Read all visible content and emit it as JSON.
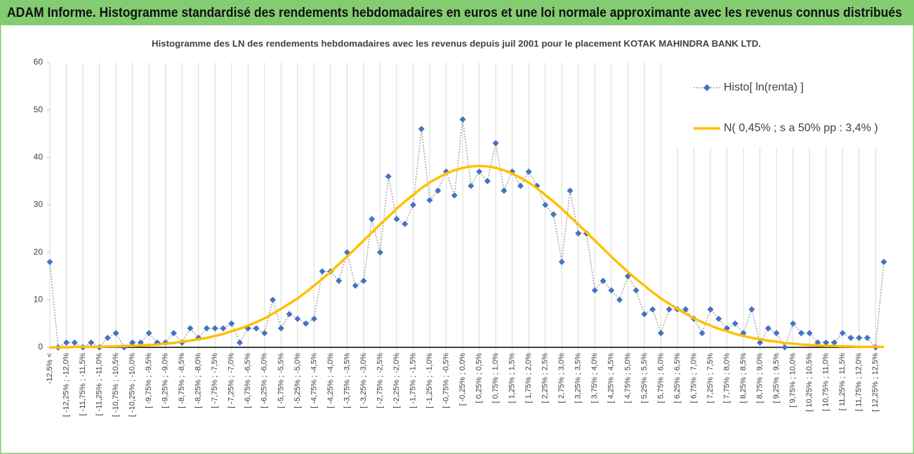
{
  "header": {
    "title": "ADAM Informe. Histogramme standardisé des rendements hebdomadaires en euros et une loi normale approximante avec les revenus connus distribués"
  },
  "chart_data": {
    "type": "line",
    "title": "Histogramme des LN des rendements hebdomadaires avec les revenus depuis juil 2001 pour le placement KOTAK MAHINDRA BANK LTD.",
    "categories": [
      "-12,5% <",
      null,
      "[ -12,25% ; -12,0%",
      null,
      "[ -11,75% ; -11,5%",
      null,
      "[ -11,25% ; -11,0%",
      null,
      "[ -10,75% ; -10,5%",
      null,
      "[ -10,25% ; -10,0%",
      null,
      "[ -9,75% ; -9,5%",
      null,
      "[ -9,25% ; -9,0%",
      null,
      "[ -8,75% ; -8,5%",
      null,
      "[ -8,25% ; -8,0%",
      null,
      "[ -7,75% ; -7,5%",
      null,
      "[ -7,25% ; -7,0%",
      null,
      "[ -6,75% ; -6,5%",
      null,
      "[ -6,25% ; -6,0%",
      null,
      "[ -5,75% ; -5,5%",
      null,
      "[ -5,25% ; -5,0%",
      null,
      "[ -4,75% ; -4,5%",
      null,
      "[ -4,25% ; -4,0%",
      null,
      "[ -3,75% ; -3,5%",
      null,
      "[ -3,25% ; -3,0%",
      null,
      "[ -2,75% ; -2,5%",
      null,
      "[ -2,25% ; -2,0%",
      null,
      "[ -1,75% ; -1,5%",
      null,
      "[ -1,25% ; -1,0%",
      null,
      "[ -0,75% ; -0,5%",
      null,
      "[ -0,25% ; 0,0%",
      null,
      "[ 0,25% ; 0,5%",
      null,
      "[ 0,75% ; 1,0%",
      null,
      "[ 1,25% ; 1,5%",
      null,
      "[ 1,75% ; 2,0%",
      null,
      "[ 2,25% ; 2,5%",
      null,
      "[ 2,75% ; 3,0%",
      null,
      "[ 3,25% ; 3,5%",
      null,
      "[ 3,75% ; 4,0%",
      null,
      "[ 4,25% ; 4,5%",
      null,
      "[ 4,75% ; 5,0%",
      null,
      "[ 5,25% ; 5,5%",
      null,
      "[ 5,75% ; 6,0%",
      null,
      "[ 6,25% ; 6,5%",
      null,
      "[ 6,75% ; 7,0%",
      null,
      "[ 7,25% ; 7,5%",
      null,
      "[ 7,75% ; 8,0%",
      null,
      "[ 8,25% ; 8,5%",
      null,
      "[ 8,75% ; 9,0%",
      null,
      "[ 9,25% ; 9,5%",
      null,
      "[ 9,75% ; 10,0%",
      null,
      "[ 10,25% ; 10,5%",
      null,
      "[ 10,75% ; 11,0%",
      null,
      "[ 11,25% ; 11,5%",
      null,
      "[ 11,75% ; 12,0%",
      null,
      "[ 12,25% ; 12,5%",
      null
    ],
    "series": [
      {
        "name": "Histo[ ln(renta) ]",
        "color": "#4472c4",
        "line_color": "#a6a6a6",
        "dash": "dot",
        "marker": "diamond",
        "values": [
          18,
          0,
          1,
          1,
          0,
          1,
          0,
          2,
          3,
          0,
          1,
          1,
          3,
          1,
          1,
          3,
          1,
          4,
          2,
          4,
          4,
          4,
          5,
          1,
          4,
          4,
          3,
          10,
          4,
          7,
          6,
          5,
          6,
          16,
          16,
          14,
          20,
          13,
          14,
          27,
          20,
          36,
          27,
          26,
          30,
          46,
          31,
          33,
          37,
          32,
          48,
          34,
          37,
          35,
          43,
          33,
          37,
          34,
          37,
          34,
          30,
          28,
          18,
          33,
          24,
          24,
          12,
          14,
          12,
          10,
          15,
          12,
          7,
          8,
          3,
          8,
          8,
          8,
          6,
          3,
          8,
          6,
          4,
          5,
          3,
          8,
          1,
          4,
          3,
          0,
          5,
          3,
          3,
          1,
          1,
          1,
          3,
          2,
          2,
          2,
          0,
          18
        ]
      },
      {
        "name": "N( 0,45% ; s a 50% pp : 3,4% )",
        "color": "#ffc000",
        "dash": "solid",
        "marker": "none",
        "values": [
          0.0,
          0.0,
          0.0,
          0.1,
          0.1,
          0.1,
          0.1,
          0.2,
          0.2,
          0.3,
          0.3,
          0.4,
          0.5,
          0.6,
          0.8,
          0.9,
          1.2,
          1.4,
          1.7,
          2.0,
          2.4,
          2.8,
          3.4,
          3.9,
          4.6,
          5.3,
          6.1,
          7.1,
          8.1,
          9.2,
          10.3,
          11.6,
          13.0,
          14.4,
          15.9,
          17.5,
          19.1,
          20.8,
          22.5,
          24.2,
          25.9,
          27.5,
          29.2,
          30.7,
          32.1,
          33.5,
          34.7,
          35.7,
          36.6,
          37.3,
          37.8,
          38.1,
          38.2,
          38.1,
          37.8,
          37.3,
          36.6,
          35.7,
          34.7,
          33.5,
          32.1,
          30.7,
          29.2,
          27.5,
          25.9,
          24.2,
          22.5,
          20.8,
          19.1,
          17.5,
          15.9,
          14.4,
          13.0,
          11.6,
          10.3,
          9.2,
          8.1,
          7.1,
          6.1,
          5.3,
          4.6,
          3.9,
          3.4,
          2.8,
          2.4,
          2.0,
          1.7,
          1.4,
          1.2,
          0.9,
          0.8,
          0.6,
          0.5,
          0.4,
          0.3,
          0.3,
          0.2,
          0.2,
          0.1,
          0.1,
          0.1,
          0.1
        ]
      }
    ],
    "ylim": [
      0,
      60
    ],
    "yticks": [
      0,
      10,
      20,
      30,
      40,
      50,
      60
    ],
    "grid": "vertical",
    "legend": "top-right"
  }
}
